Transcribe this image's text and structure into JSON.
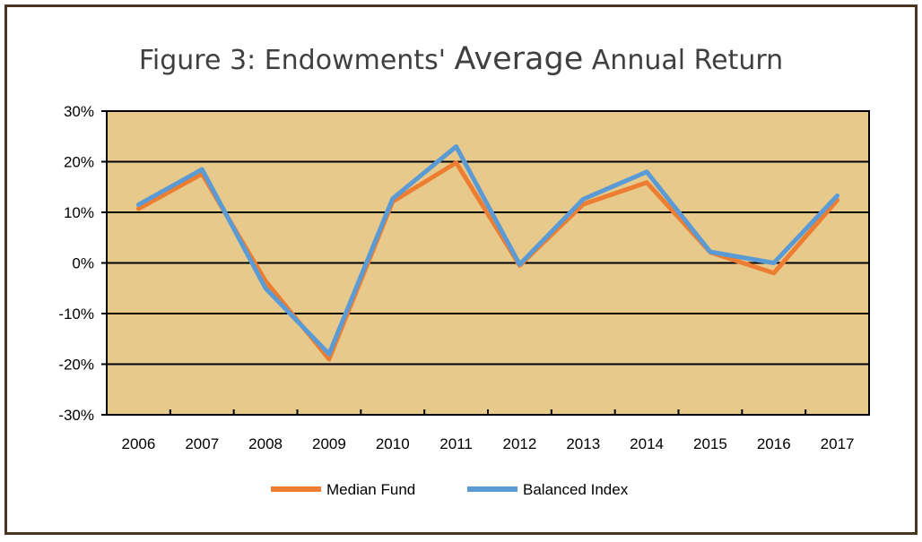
{
  "chart_data": {
    "type": "line",
    "title_pre": "Figure 3: Endowments'",
    "title_emph": "Average",
    "title_post": "Annual Return",
    "x": [
      "2006",
      "2007",
      "2008",
      "2009",
      "2010",
      "2011",
      "2012",
      "2013",
      "2014",
      "2015",
      "2016",
      "2017"
    ],
    "y_ticks": [
      "30%",
      "20%",
      "10%",
      "0%",
      "-10%",
      "-20%",
      "-30%"
    ],
    "ylim": [
      -30,
      30
    ],
    "series": [
      {
        "name": "Median Fund",
        "color": "#ed7d31",
        "values": [
          10.7,
          17.6,
          -3.6,
          -19.0,
          12.1,
          19.8,
          -0.5,
          11.6,
          15.9,
          2.1,
          -2.0,
          12.4
        ]
      },
      {
        "name": "Balanced Index",
        "color": "#5b9bd5",
        "values": [
          11.5,
          18.5,
          -5.0,
          -18.0,
          12.7,
          23.0,
          -0.3,
          12.6,
          18.0,
          2.2,
          0.0,
          13.3
        ]
      }
    ],
    "grid": true,
    "plot_background": "#e7c98b",
    "legend_position": "bottom"
  }
}
